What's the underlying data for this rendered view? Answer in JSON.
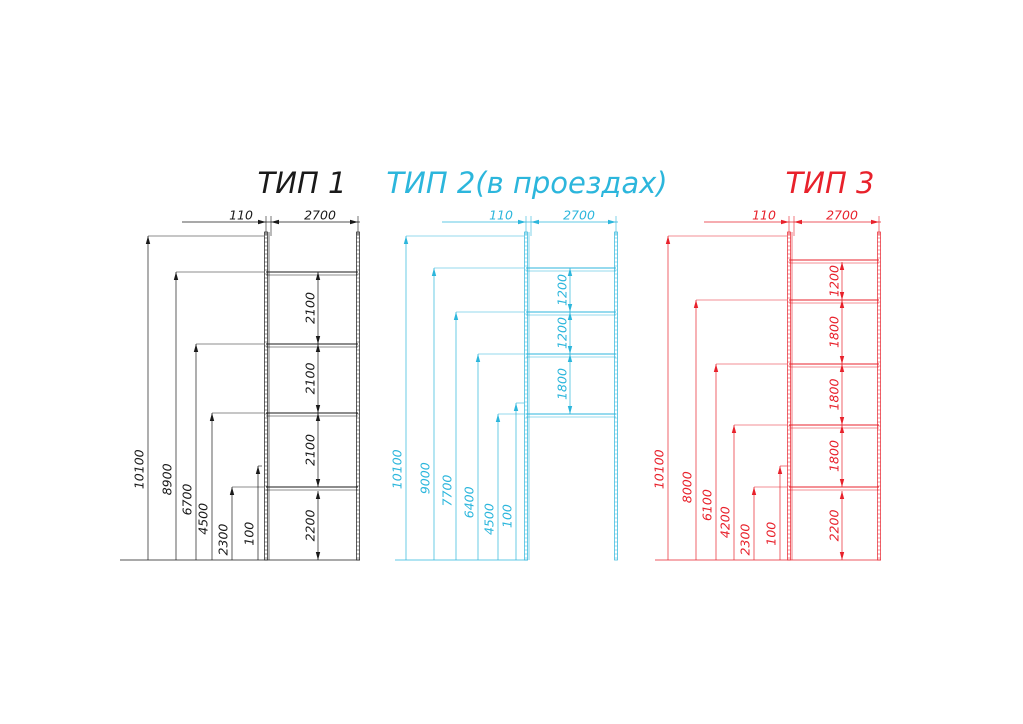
{
  "drawing": {
    "types": [
      {
        "id": "type1",
        "title": "ТИП 1",
        "color": "#1a1a1a",
        "width_labels": [
          "110",
          "2700"
        ],
        "height_labels": [
          "10100",
          "8900",
          "6700",
          "4500",
          "2300",
          "100"
        ],
        "level_labels": [
          "2100",
          "2100",
          "2100",
          "2200"
        ]
      },
      {
        "id": "type2",
        "title": "ТИП 2(в проездах)",
        "color": "#2cb6dc",
        "width_labels": [
          "110",
          "2700"
        ],
        "height_labels": [
          "10100",
          "9000",
          "7700",
          "6400",
          "4500",
          "100"
        ],
        "level_labels": [
          "1200",
          "1200",
          "1800"
        ]
      },
      {
        "id": "type3",
        "title": "ТИП 3",
        "color": "#e8212b",
        "width_labels": [
          "110",
          "2700"
        ],
        "height_labels": [
          "10100",
          "8000",
          "6100",
          "4200",
          "2300",
          "100"
        ],
        "level_labels": [
          "1200",
          "1800",
          "1800",
          "1800",
          "2200"
        ]
      }
    ]
  }
}
